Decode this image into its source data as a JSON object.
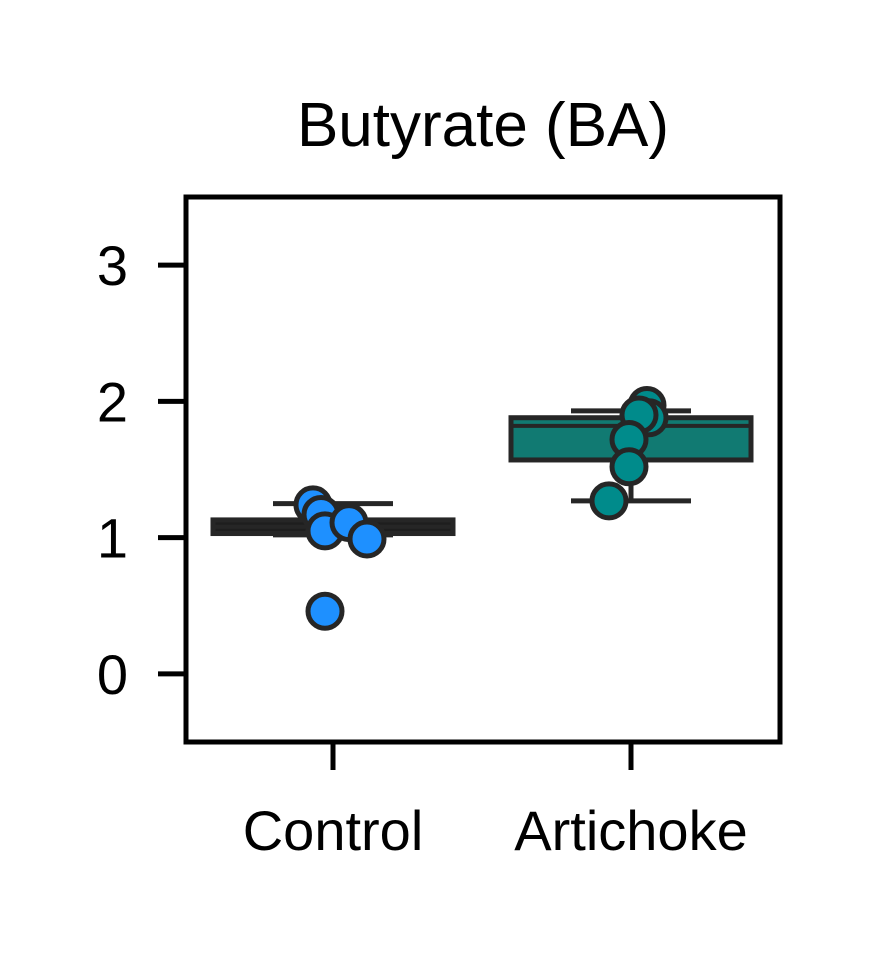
{
  "chart_data": {
    "type": "box",
    "title": "Butyrate (BA)",
    "xlabel": "",
    "ylabel": "",
    "ylim": [
      -0.5,
      3.5
    ],
    "yticks": [
      0,
      1,
      2,
      3
    ],
    "categories": [
      "Control",
      "Artichoke"
    ],
    "grid": false,
    "colors": {
      "Control": {
        "box": "#1e1e1e",
        "point": "#1e90ff"
      },
      "Artichoke": {
        "box": "#117a72",
        "point": "#008b8b"
      },
      "outline": "#262626"
    },
    "boxes": [
      {
        "category": "Control",
        "whisker_low": 1.02,
        "q1": 1.03,
        "median": 1.08,
        "q3": 1.13,
        "whisker_high": 1.25
      },
      {
        "category": "Artichoke",
        "whisker_low": 1.27,
        "q1": 1.57,
        "median": 1.82,
        "q3": 1.88,
        "whisker_high": 1.93
      }
    ],
    "points": [
      {
        "category": "Control",
        "values": [
          1.24,
          1.17,
          1.05,
          1.11,
          0.99,
          0.46
        ]
      },
      {
        "category": "Artichoke",
        "values": [
          1.97,
          1.88,
          1.9,
          1.72,
          1.52,
          1.27
        ]
      }
    ]
  }
}
